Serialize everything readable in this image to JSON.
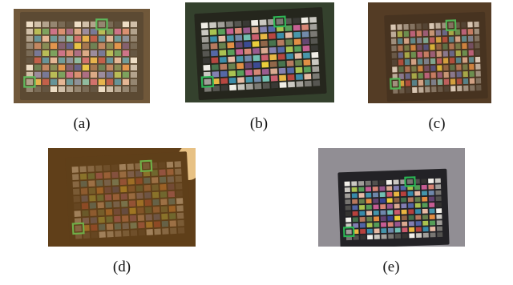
{
  "figure": {
    "panels": [
      {
        "id": "a",
        "caption": "(a)",
        "lighting": "warm-indoor",
        "bg": "#3a2c1c",
        "board": "#1e1812",
        "tint": "#ffcc88",
        "tint_opacity": 0.28,
        "bright": 0.95
      },
      {
        "id": "b",
        "caption": "(b)",
        "lighting": "outdoor-foliage",
        "bg": "#263320",
        "board": "#16160f",
        "tint": "#d8e6c8",
        "tint_opacity": 0.08,
        "bright": 1.0
      },
      {
        "id": "c",
        "caption": "(c)",
        "lighting": "dim-warm",
        "bg": "#241a10",
        "board": "#140f0a",
        "tint": "#ffb870",
        "tint_opacity": 0.22,
        "bright": 0.85
      },
      {
        "id": "d",
        "caption": "(d)",
        "lighting": "very-dark-warm",
        "bg": "#0c0805",
        "board": "#0a0806",
        "tint": "#ffa640",
        "tint_opacity": 0.35,
        "bright": 0.45
      },
      {
        "id": "e",
        "caption": "(e)",
        "lighting": "neutral-gray",
        "bg": "#8d8a90",
        "board": "#1b1a1e",
        "tint": "#ffffff",
        "tint_opacity": 0.04,
        "bright": 1.0
      }
    ],
    "highlight_color": "#22b14c",
    "palette": [
      "#f2efe9",
      "#c9c6c0",
      "#9e9b96",
      "#73716d",
      "#4b4a47",
      "#2c2b29",
      "#b57257",
      "#d9a58c",
      "#6a83a8",
      "#5f7a45",
      "#7d79ae",
      "#6bbdb0",
      "#e2883a",
      "#4a5ea3",
      "#c95468",
      "#5c3b6b",
      "#a7c048",
      "#e9b43a",
      "#2f3e8f",
      "#4f9a52",
      "#b53a36",
      "#eccb2f",
      "#c4568f",
      "#2f86a7",
      "#8a5c3e",
      "#d77f6f",
      "#e6b8a2",
      "#3c6b44",
      "#95508a",
      "#3d91a8"
    ]
  }
}
